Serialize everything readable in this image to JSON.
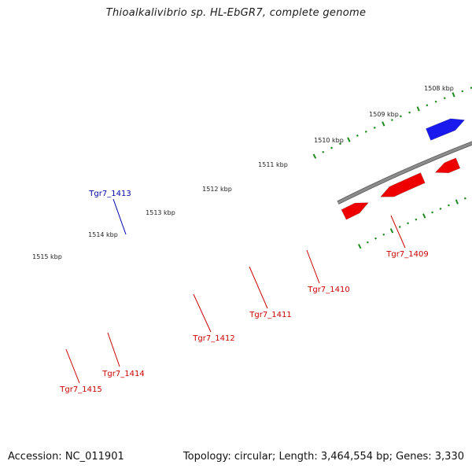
{
  "title": "Thioalkalivibrio sp. HL-EbGR7, complete genome",
  "footer": {
    "accession": "Accession: NC_011901",
    "topology": "Topology: circular; Length: 3,464,554 bp; Genes: 3,330"
  },
  "colors": {
    "backbone": "#8c8c8c",
    "tick": "#1f8a1f",
    "forward_cds": "#ee0000",
    "reverse_cds": "#1a1aee",
    "gray_feature": "#6a6a6a",
    "olive_feature": "#b8b46a",
    "orange_feature": "#f08c00",
    "pink_feature": "#ff2d9a",
    "green_feature": "#6b8e23",
    "label_red": "#cc0000",
    "label_blue": "#0000aa"
  },
  "kbp_ticks": [
    {
      "label": "1508 kbp"
    },
    {
      "label": "1509 kbp"
    },
    {
      "label": "1510 kbp"
    },
    {
      "label": "1511 kbp"
    },
    {
      "label": "1512 kbp"
    },
    {
      "label": "1513 kbp"
    },
    {
      "label": "1514 kbp"
    },
    {
      "label": "1515 kbp"
    }
  ],
  "gene_labels": [
    {
      "text": "Tgr7_1413",
      "color": "blue"
    },
    {
      "text": "Tgr7_1409",
      "color": "red"
    },
    {
      "text": "Tgr7_1410",
      "color": "red"
    },
    {
      "text": "Tgr7_1411",
      "color": "red"
    },
    {
      "text": "Tgr7_1412",
      "color": "red"
    },
    {
      "text": "Tgr7_1414",
      "color": "red"
    },
    {
      "text": "Tgr7_1415",
      "color": "red"
    }
  ]
}
